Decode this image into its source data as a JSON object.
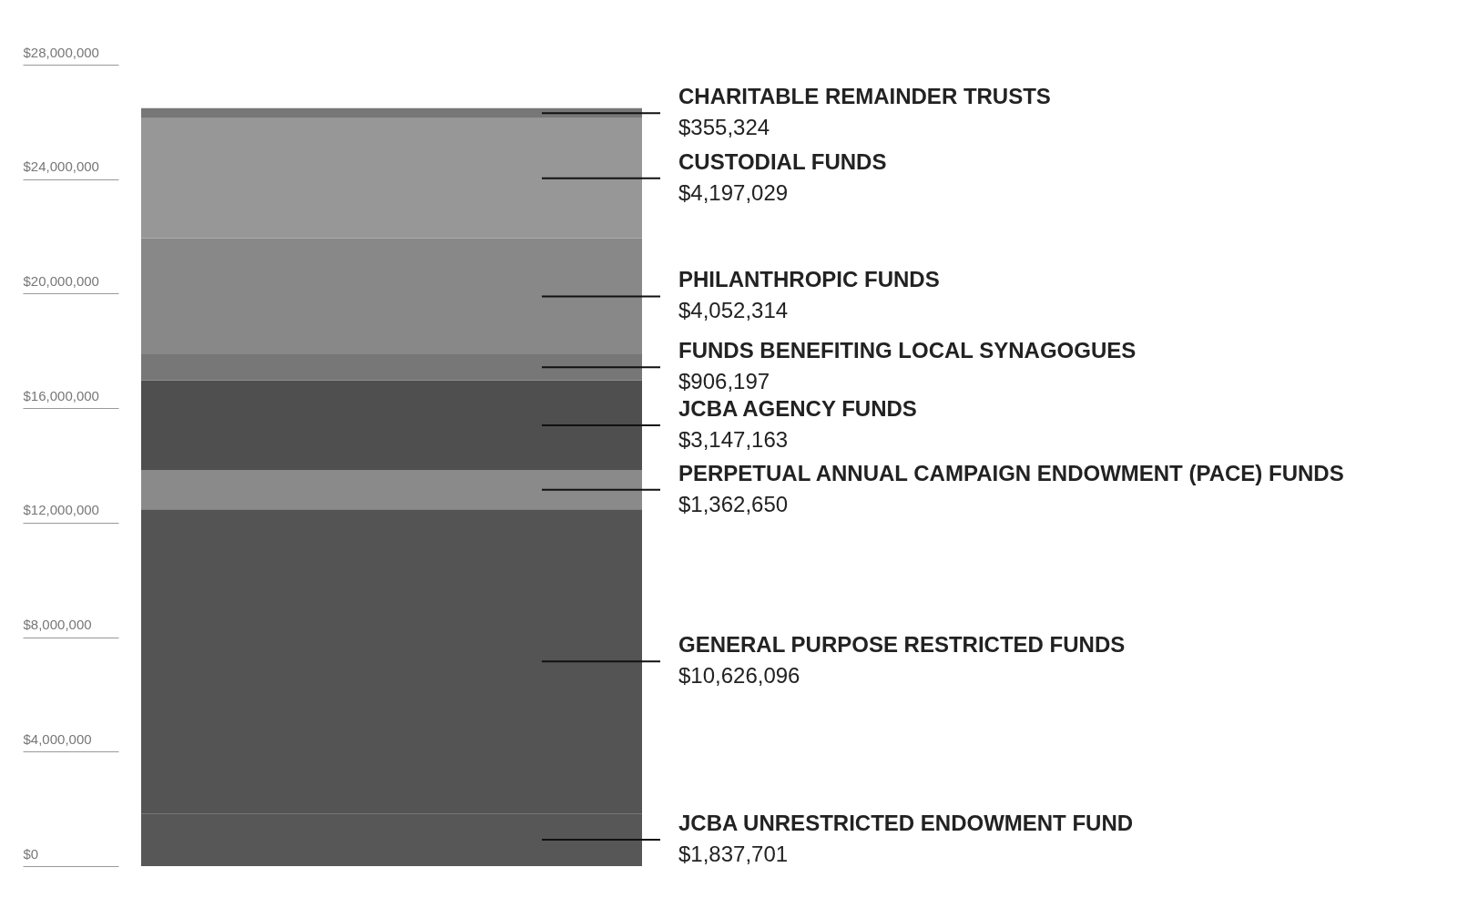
{
  "chart_data": {
    "type": "bar",
    "stacked": true,
    "categories": [
      null
    ],
    "legend": false,
    "grid": false,
    "ylim": [
      0,
      28000000
    ],
    "yticks": [
      {
        "value": 0,
        "label": "$0"
      },
      {
        "value": 4000000,
        "label": "$4,000,000"
      },
      {
        "value": 8000000,
        "label": "$8,000,000"
      },
      {
        "value": 12000000,
        "label": "$12,000,000"
      },
      {
        "value": 16000000,
        "label": "$16,000,000"
      },
      {
        "value": 20000000,
        "label": "$20,000,000"
      },
      {
        "value": 24000000,
        "label": "$24,000,000"
      },
      {
        "value": 28000000,
        "label": "$28,000,000"
      }
    ],
    "series": [
      {
        "name": "JCBA UNRESTRICTED ENDOWMENT FUND",
        "color": "#575757",
        "values": [
          1837701
        ],
        "value_labels": [
          "$1,837,701"
        ]
      },
      {
        "name": "GENERAL PURPOSE RESTRICTED FUNDS",
        "color": "#545454",
        "values": [
          10626096
        ],
        "value_labels": [
          "$10,626,096"
        ]
      },
      {
        "name": "PERPETUAL ANNUAL CAMPAIGN ENDOWMENT (PACE) FUNDS",
        "color": "#8a8a8a",
        "values": [
          1362650
        ],
        "value_labels": [
          "$1,362,650"
        ]
      },
      {
        "name": "JCBA AGENCY FUNDS",
        "color": "#4f4f4f",
        "values": [
          3147163
        ],
        "value_labels": [
          "$3,147,163"
        ]
      },
      {
        "name": "FUNDS BENEFITING LOCAL SYNAGOGUES",
        "color": "#777777",
        "values": [
          906197
        ],
        "value_labels": [
          "$906,197"
        ]
      },
      {
        "name": "PHILANTHROPIC FUNDS",
        "color": "#888888",
        "values": [
          4052314
        ],
        "value_labels": [
          "$4,052,314"
        ]
      },
      {
        "name": "CUSTODIAL FUNDS",
        "color": "#979797",
        "values": [
          4197029
        ],
        "value_labels": [
          "$4,197,029"
        ]
      },
      {
        "name": "CHARITABLE REMAINDER TRUSTS",
        "color": "#777777",
        "values": [
          355324
        ],
        "value_labels": [
          "$355,324"
        ]
      }
    ]
  }
}
